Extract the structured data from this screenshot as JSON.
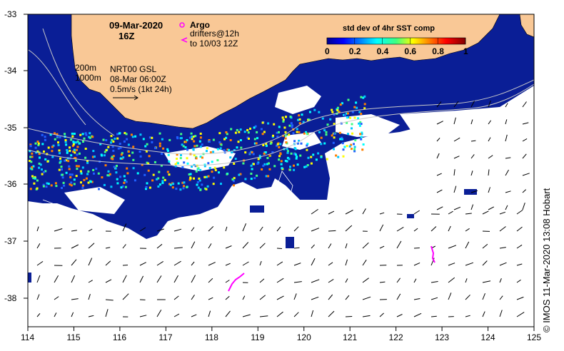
{
  "map": {
    "date": "09-Mar-2020",
    "time": "16Z",
    "legend": {
      "argo_label": "Argo",
      "drifters_label": "drifters@12h",
      "drifters_to": "to 10/03 12Z",
      "argo_color": "#ff00ff"
    },
    "colorbar": {
      "title": "std dev of 4hr SST comp",
      "ticks": [
        "0",
        "0.2",
        "0.4",
        "0.6",
        "0.8",
        "1"
      ]
    },
    "isobaths": [
      "200m",
      "1000m"
    ],
    "currents": {
      "source": "NRT00 GSL",
      "date": "08-Mar 06:00Z",
      "scale": "0.5m/s (1kt 24h)"
    },
    "lat_ticks": [
      "-33",
      "-34",
      "-35",
      "-36",
      "-37",
      "-38"
    ],
    "lon_ticks": [
      "114",
      "115",
      "116",
      "117",
      "118",
      "119",
      "120",
      "121",
      "122",
      "123",
      "124",
      "125"
    ],
    "credit": "© IMOS 11-Mar-2020 13:08 Hobart",
    "colors": {
      "land": "#f9c896",
      "ocean_data": "#0a1e96",
      "no_data": "#ffffff",
      "drifter": "#ff00ff"
    }
  }
}
